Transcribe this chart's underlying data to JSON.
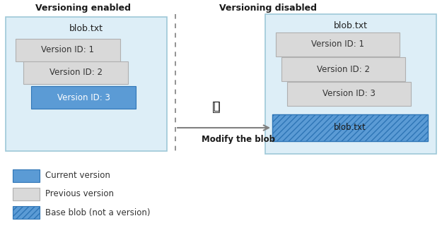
{
  "bg_color": "#ffffff",
  "left_panel_bg": "#ddeef7",
  "right_panel_bg": "#ddeef7",
  "current_version_color": "#5b9bd5",
  "previous_version_color": "#d9d9d9",
  "previous_version_border": "#b0b0b0",
  "panel_border": "#9ec8d8",
  "arrow_color": "#808080",
  "dashed_line_color": "#808080",
  "title_left": "Versioning enabled",
  "title_right": "Versioning disabled",
  "left_blob_label": "blob.txt",
  "right_blob_label": "blob.txt",
  "version_labels": [
    "Version ID: 1",
    "Version ID: 2",
    "Version ID: 3"
  ],
  "modify_label": "Modify the blob",
  "base_blob_label": "blob.txt",
  "legend_current": "Current version",
  "legend_previous": "Previous version",
  "legend_base": "Base blob (not a version)"
}
